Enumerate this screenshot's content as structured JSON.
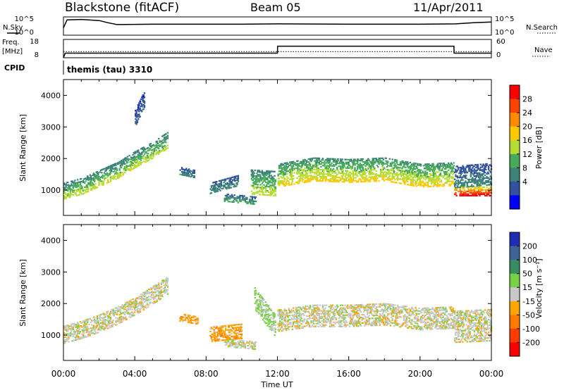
{
  "header": {
    "station": "Blackstone (fitACF)",
    "beam": "Beam 05",
    "date": "11/Apr/2011"
  },
  "panels": {
    "nsky_label": "N.Sky",
    "nsearch_label": "N.Search",
    "freq_label": "Freq.",
    "freq_unit": "[MHz]",
    "nave_label": "Nave",
    "cpid_label": "CPID",
    "cpid_text": "themis (tau) 3310",
    "noise_ticks": [
      "10^5",
      "10^0"
    ],
    "freq_ticks": [
      "18",
      "8"
    ],
    "nave_ticks": [
      "60",
      "0"
    ]
  },
  "colorbars": {
    "power": {
      "label": "Power [dB]",
      "ticks": [
        "28",
        "24",
        "20",
        "16",
        "12",
        "8",
        "4"
      ],
      "colors": [
        "#ff0000",
        "#ff4400",
        "#ff8c00",
        "#ffc800",
        "#b4dc32",
        "#46aa5a",
        "#3c8278",
        "#3250a0",
        "#0000ff"
      ]
    },
    "velocity": {
      "label": "Velocity [m s⁻¹]",
      "ticks": [
        "200",
        "100",
        "50",
        "15",
        "-15",
        "-50",
        "-100",
        "-200"
      ],
      "colors": [
        "#1e2db4",
        "#3c6496",
        "#378c64",
        "#78d246",
        "#c8c8c8",
        "#ffa500",
        "#ff7800",
        "#ff3c00",
        "#ff0000"
      ]
    }
  },
  "chart_data": [
    {
      "type": "line",
      "series": [
        {
          "name": "N.Sky",
          "x": [
            0,
            0.2,
            1,
            2,
            2.5,
            3,
            5,
            8,
            10,
            12,
            16,
            20,
            22,
            23,
            24
          ],
          "y": [
            2,
            4.2,
            4.3,
            4.0,
            3.4,
            2.9,
            3.0,
            3.0,
            3.0,
            3.1,
            3.0,
            3.0,
            3.1,
            3.4,
            3.6
          ]
        }
      ],
      "xlim": [
        0,
        24
      ],
      "ylim": [
        0,
        5
      ]
    },
    {
      "type": "line",
      "series": [
        {
          "name": "Freq.",
          "x": [
            0,
            0.1,
            12,
            12.01,
            21.9,
            21.91,
            24
          ],
          "y": [
            8,
            10.5,
            10.5,
            14.3,
            14.3,
            10.5,
            10.5
          ]
        },
        {
          "name": "Nave",
          "x": [
            0,
            24
          ],
          "y": [
            20,
            20
          ]
        }
      ],
      "xlim": [
        0,
        24
      ],
      "ylim_freq": [
        8,
        18
      ],
      "ylim_nave": [
        0,
        60
      ]
    },
    {
      "type": "heatmap",
      "xlabel": "",
      "ylabel": "Slant Range [km]",
      "xlim": [
        0,
        24
      ],
      "ylim": [
        200,
        4500
      ],
      "yticks": [
        1000,
        2000,
        3000,
        4000
      ],
      "value_label": "Power [dB]",
      "value_range": [
        0,
        32
      ],
      "features": [
        {
          "x": [
            0.0,
            1.0,
            2.0,
            3.0,
            4.0,
            5.0,
            5.8
          ],
          "y": [
            1000,
            1150,
            1400,
            1650,
            2000,
            2300,
            2600
          ],
          "width_km": 500,
          "value": 14
        },
        {
          "x": [
            4.0,
            4.5
          ],
          "y": [
            3300,
            3900
          ],
          "width_km": 500,
          "value": 6
        },
        {
          "x": [
            6.5,
            7.3
          ],
          "y": [
            1650,
            1550
          ],
          "width_km": 250,
          "value": 8
        },
        {
          "x": [
            8.2,
            9.8
          ],
          "y": [
            1100,
            1350
          ],
          "width_km": 350,
          "value": 8
        },
        {
          "x": [
            9.0,
            10.8
          ],
          "y": [
            800,
            700
          ],
          "width_km": 250,
          "value": 10
        },
        {
          "x": [
            10.5,
            11.9
          ],
          "y": [
            1300,
            1250
          ],
          "width_km": 800,
          "value": 14
        },
        {
          "x": [
            12.0,
            14.0,
            16.0,
            18.0,
            20.0,
            21.9
          ],
          "y": [
            1500,
            1700,
            1650,
            1700,
            1500,
            1550
          ],
          "width_km": 750,
          "value": 16
        },
        {
          "x": [
            21.9,
            24.0
          ],
          "y": [
            1000,
            1000
          ],
          "width_km": 300,
          "value": 26
        },
        {
          "x": [
            21.9,
            24.0
          ],
          "y": [
            1450,
            1550
          ],
          "width_km": 700,
          "value": 8
        }
      ]
    },
    {
      "type": "heatmap",
      "xlabel": "Time UT",
      "ylabel": "Slant Range [km]",
      "xlim": [
        0,
        24
      ],
      "ylim": [
        200,
        4500
      ],
      "yticks": [
        1000,
        2000,
        3000,
        4000
      ],
      "xticks": [
        "00:00",
        "04:00",
        "08:00",
        "12:00",
        "16:00",
        "20:00",
        "00:00"
      ],
      "value_label": "Velocity [m s⁻¹]",
      "value_range": [
        -200,
        200
      ],
      "features": [
        {
          "x": [
            0.0,
            1.0,
            2.0,
            3.0,
            4.0,
            5.0,
            5.8
          ],
          "y": [
            1050,
            1200,
            1400,
            1650,
            1950,
            2300,
            2600
          ],
          "width_km": 550,
          "value": 0
        },
        {
          "x": [
            6.5,
            7.5
          ],
          "y": [
            1600,
            1500
          ],
          "width_km": 250,
          "value": -50
        },
        {
          "x": [
            8.2,
            10.0
          ],
          "y": [
            1050,
            1150
          ],
          "width_km": 450,
          "value": -50
        },
        {
          "x": [
            9.0,
            10.8
          ],
          "y": [
            800,
            700
          ],
          "width_km": 250,
          "value": 0
        },
        {
          "x": [
            10.7,
            11.9
          ],
          "y": [
            2200,
            1300
          ],
          "width_km": 700,
          "value": 30
        },
        {
          "x": [
            12.0,
            14.0,
            16.0,
            18.0,
            20.0,
            21.9
          ],
          "y": [
            1500,
            1650,
            1650,
            1700,
            1550,
            1600
          ],
          "width_km": 700,
          "value": 0
        },
        {
          "x": [
            21.9,
            24.0
          ],
          "y": [
            1300,
            1350
          ],
          "width_km": 1000,
          "value": 0
        }
      ]
    }
  ]
}
